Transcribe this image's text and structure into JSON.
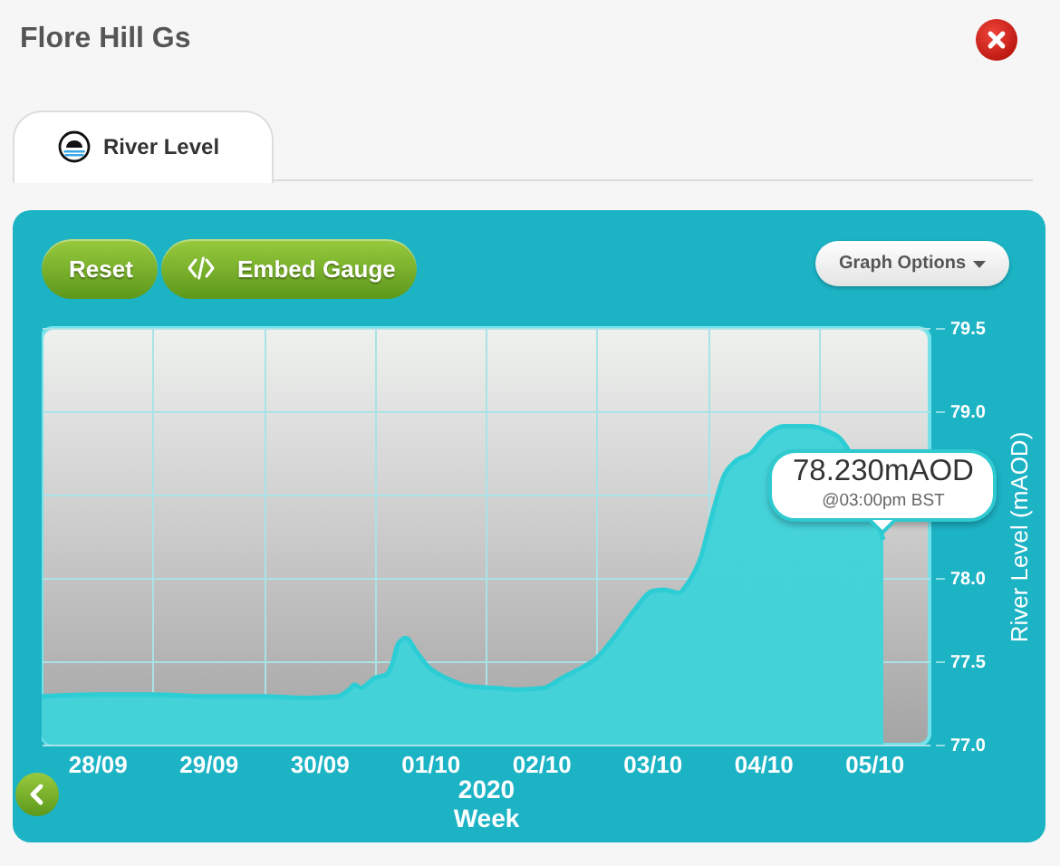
{
  "chart_data": {
    "type": "area",
    "title": "Flore Hill Gs",
    "subtitle": "River Level",
    "xlabel": "2020\nWeek",
    "ylabel": "River Level (mAOD)",
    "annotations": [
      "Reset",
      "Embed Gauge",
      "Graph Options",
      {
        "text": "78.230mAOD",
        "x": "2020-10-05T14:00",
        "y": 78.23
      },
      {
        "text": "@03:00pm BST",
        "x": "2020-10-05T14:00",
        "y": 78.23
      }
    ],
    "x": [
      "2020-09-28T00:00",
      "2020-09-28T12:00",
      "2020-09-29T00:00",
      "2020-09-29T12:00",
      "2020-09-30T00:00",
      "2020-09-30T09:00",
      "2020-09-30T16:00",
      "2020-09-30T18:30",
      "2020-09-30T19:40",
      "2020-09-30T21:00",
      "2020-10-01T00:00",
      "2020-10-01T02:30",
      "2020-10-01T04:00",
      "2020-10-01T05:00",
      "2020-10-01T06:45",
      "2020-10-01T09:00",
      "2020-10-01T11:30",
      "2020-10-01T15:30",
      "2020-10-01T20:30",
      "2020-10-02T02:00",
      "2020-10-02T07:00",
      "2020-10-02T12:30",
      "2020-10-02T16:30",
      "2020-10-02T20:00",
      "2020-10-03T00:00",
      "2020-10-03T04:00",
      "2020-10-03T08:00",
      "2020-10-03T12:00",
      "2020-10-03T14:30",
      "2020-10-03T17:45",
      "2020-10-03T19:30",
      "2020-10-03T22:30",
      "2020-10-04T01:00",
      "2020-10-04T03:30",
      "2020-10-04T06:00",
      "2020-10-04T09:30",
      "2020-10-04T12:30",
      "2020-10-04T16:30",
      "2020-10-04T22:00",
      "2020-10-05T02:00",
      "2020-10-05T04:30",
      "2020-10-05T14:00"
    ],
    "values": [
      77.29,
      77.3,
      77.3,
      77.29,
      77.29,
      77.28,
      77.29,
      77.33,
      77.36,
      77.34,
      77.4,
      77.42,
      77.5,
      77.6,
      77.64,
      77.56,
      77.47,
      77.4,
      77.35,
      77.34,
      77.33,
      77.34,
      77.4,
      77.45,
      77.52,
      77.65,
      77.8,
      77.92,
      77.93,
      77.91,
      77.96,
      78.12,
      78.38,
      78.61,
      78.7,
      78.75,
      78.85,
      78.91,
      78.91,
      78.88,
      78.84,
      78.23
    ],
    "color": "#2ccdd5",
    "xlim": [
      "2020-09-28T00:00",
      "2020-10-06T00:00"
    ],
    "xticks": [
      {
        "value": "2020-09-28T12:00",
        "label": "28/09"
      },
      {
        "value": "2020-09-29T00:00",
        "label": null
      },
      {
        "value": "2020-09-29T12:00",
        "label": "29/09"
      },
      {
        "value": "2020-09-30T00:00",
        "label": null
      },
      {
        "value": "2020-09-30T12:00",
        "label": "30/09"
      },
      {
        "value": "2020-10-01T00:00",
        "label": null
      },
      {
        "value": "2020-10-01T12:00",
        "label": "01/10"
      },
      {
        "value": "2020-10-02T00:00",
        "label": null
      },
      {
        "value": "2020-10-02T12:00",
        "label": "02/10"
      },
      {
        "value": "2020-10-03T00:00",
        "label": null
      },
      {
        "value": "2020-10-03T12:00",
        "label": "03/10"
      },
      {
        "value": "2020-10-04T00:00",
        "label": null
      },
      {
        "value": "2020-10-04T12:00",
        "label": "04/10"
      },
      {
        "value": "2020-10-05T00:00",
        "label": null
      },
      {
        "value": "2020-10-05T12:00",
        "label": "05/10"
      }
    ],
    "ylim": [
      77,
      79.5
    ],
    "yticks": [
      {
        "value": 77,
        "label": "77.0"
      },
      77.5,
      {
        "value": 78,
        "label": "78.0"
      },
      {
        "value": 78.5,
        "label": null
      },
      {
        "value": 79,
        "label": "79.0"
      },
      79.5
    ],
    "grid": true
  }
}
